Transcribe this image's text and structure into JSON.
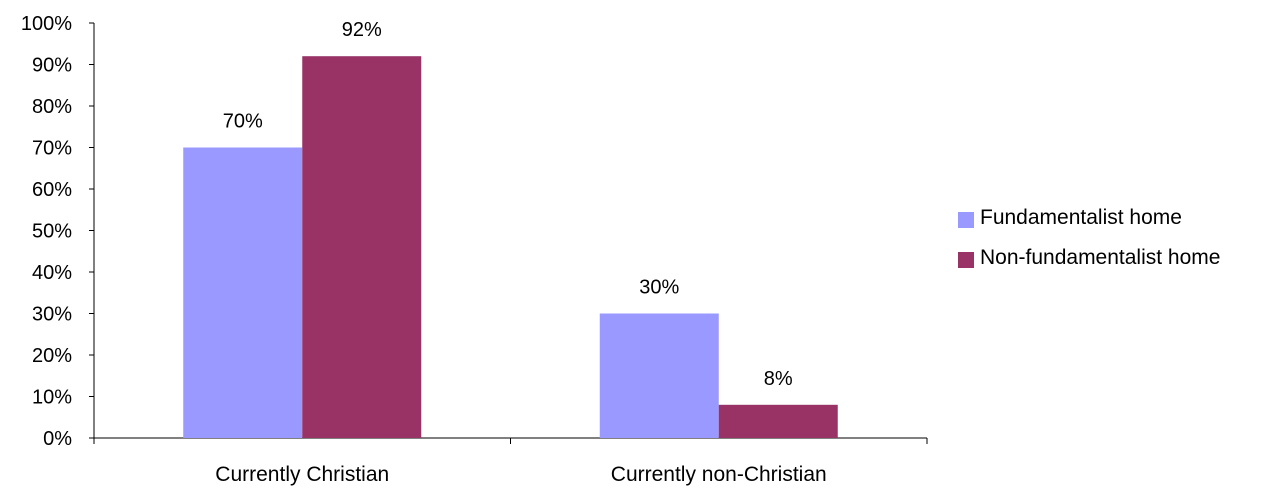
{
  "chart_data": {
    "type": "bar",
    "title": "",
    "xlabel": "",
    "ylabel": "",
    "categories": [
      "Currently Christian",
      "Currently non-Christian"
    ],
    "series": [
      {
        "name": "Fundamentalist home",
        "color": "#9999ff",
        "values": [
          70,
          30
        ],
        "labels": [
          "70%",
          "30%"
        ]
      },
      {
        "name": "Non-fundamentalist home",
        "color": "#993366",
        "values": [
          92,
          8
        ],
        "labels": [
          "92%",
          "8%"
        ]
      }
    ],
    "ylim": [
      0,
      100
    ],
    "yticks": [
      0,
      10,
      20,
      30,
      40,
      50,
      60,
      70,
      80,
      90,
      100
    ],
    "ytick_labels": [
      "0%",
      "10%",
      "20%",
      "30%",
      "40%",
      "50%",
      "60%",
      "70%",
      "80%",
      "90%",
      "100%"
    ],
    "grid": false,
    "legend_position": "right"
  }
}
